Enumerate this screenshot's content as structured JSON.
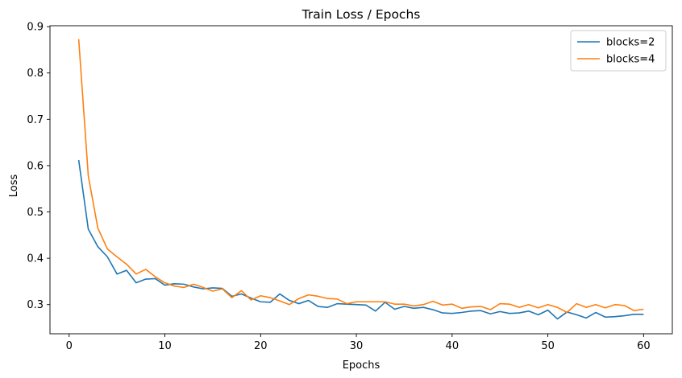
{
  "chart_data": {
    "type": "line",
    "title": "Train Loss / Epochs",
    "xlabel": "Epochs",
    "ylabel": "Loss",
    "xlim": [
      -2,
      63
    ],
    "ylim": [
      0.237,
      0.902
    ],
    "xticks": [
      0,
      10,
      20,
      30,
      40,
      50,
      60
    ],
    "yticks": [
      0.3,
      0.4,
      0.5,
      0.6,
      0.7,
      0.8,
      0.9
    ],
    "grid": false,
    "legend_position": "top-right",
    "x": [
      1,
      2,
      3,
      4,
      5,
      6,
      7,
      8,
      9,
      10,
      11,
      12,
      13,
      14,
      15,
      16,
      17,
      18,
      19,
      20,
      21,
      22,
      23,
      24,
      25,
      26,
      27,
      28,
      29,
      30,
      31,
      32,
      33,
      34,
      35,
      36,
      37,
      38,
      39,
      40,
      41,
      42,
      43,
      44,
      45,
      46,
      47,
      48,
      49,
      50,
      51,
      52,
      53,
      54,
      55,
      56,
      57,
      58,
      59,
      60
    ],
    "series": [
      {
        "name": "blocks=2",
        "color": "#1f77b4",
        "values": [
          0.612,
          0.463,
          0.425,
          0.403,
          0.366,
          0.374,
          0.347,
          0.355,
          0.356,
          0.342,
          0.345,
          0.344,
          0.338,
          0.334,
          0.336,
          0.335,
          0.318,
          0.323,
          0.314,
          0.306,
          0.305,
          0.323,
          0.309,
          0.302,
          0.309,
          0.296,
          0.294,
          0.302,
          0.301,
          0.3,
          0.299,
          0.286,
          0.305,
          0.29,
          0.296,
          0.292,
          0.294,
          0.289,
          0.282,
          0.281,
          0.283,
          0.286,
          0.287,
          0.28,
          0.285,
          0.281,
          0.282,
          0.286,
          0.278,
          0.288,
          0.269,
          0.284,
          0.278,
          0.271,
          0.283,
          0.273,
          0.274,
          0.276,
          0.279,
          0.279
        ]
      },
      {
        "name": "blocks=4",
        "color": "#ff7f0e",
        "values": [
          0.873,
          0.578,
          0.465,
          0.42,
          0.403,
          0.387,
          0.366,
          0.376,
          0.36,
          0.347,
          0.34,
          0.337,
          0.344,
          0.337,
          0.329,
          0.334,
          0.315,
          0.33,
          0.31,
          0.319,
          0.315,
          0.308,
          0.3,
          0.313,
          0.321,
          0.318,
          0.313,
          0.312,
          0.302,
          0.306,
          0.306,
          0.306,
          0.306,
          0.301,
          0.301,
          0.297,
          0.3,
          0.307,
          0.299,
          0.301,
          0.292,
          0.295,
          0.296,
          0.289,
          0.302,
          0.301,
          0.294,
          0.3,
          0.293,
          0.3,
          0.294,
          0.283,
          0.302,
          0.294,
          0.3,
          0.293,
          0.3,
          0.298,
          0.287,
          0.29
        ]
      }
    ]
  }
}
